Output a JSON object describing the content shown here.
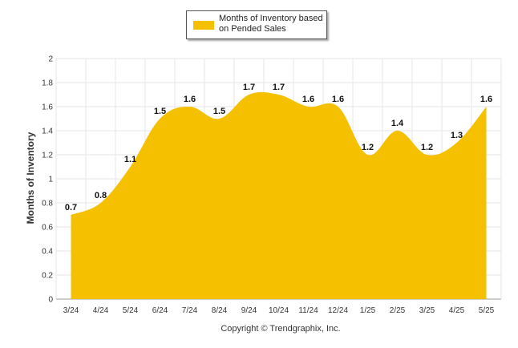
{
  "colors": {
    "area": "#F5C000",
    "grid": "#e6e6e6",
    "axis": "#999999"
  },
  "chart_data": {
    "type": "area",
    "categories": [
      "3/24",
      "4/24",
      "5/24",
      "6/24",
      "7/24",
      "8/24",
      "9/24",
      "10/24",
      "11/24",
      "12/24",
      "1/25",
      "2/25",
      "3/25",
      "4/25",
      "5/25"
    ],
    "series": [
      {
        "name": "Months of Inventory based on Pended Sales",
        "values": [
          0.7,
          0.8,
          1.1,
          1.5,
          1.6,
          1.5,
          1.7,
          1.7,
          1.6,
          1.6,
          1.2,
          1.4,
          1.2,
          1.3,
          1.6
        ]
      }
    ],
    "data_labels": [
      "0.7",
      "0.8",
      "1.1",
      "1.5",
      "1.6",
      "1.5",
      "1.7",
      "1.7",
      "1.6",
      "1.6",
      "1.2",
      "1.4",
      "1.2",
      "1.3",
      "1.6"
    ],
    "yticks": [
      "0",
      "0.2",
      "0.4",
      "0.6",
      "0.8",
      "1",
      "1.2",
      "1.4",
      "1.6",
      "1.8",
      "2"
    ],
    "ylim": [
      0,
      2
    ],
    "xlabel": "",
    "ylabel": "Months of Inventory",
    "grid": true,
    "legend_position": "top-center"
  },
  "legend": {
    "label": "Months of Inventory based on Pended Sales"
  },
  "footer": {
    "copyright": "Copyright © Trendgraphix, Inc."
  }
}
